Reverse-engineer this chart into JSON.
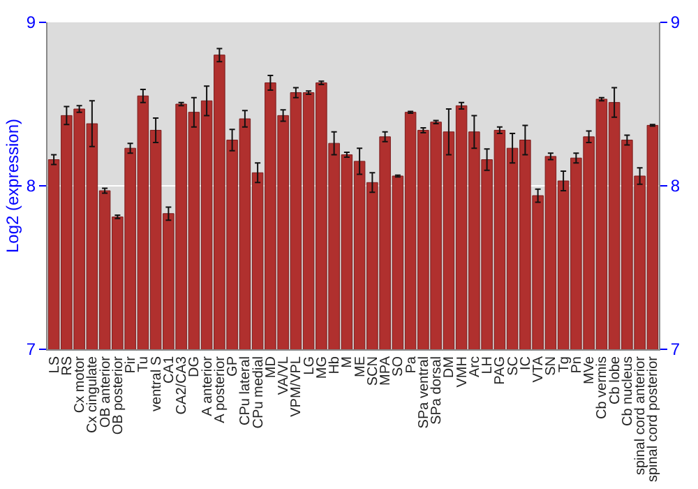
{
  "chart_data": {
    "type": "bar",
    "ylabel": "Log2 (expression)",
    "categories": [
      "LS",
      "RS",
      "Cx motor",
      "Cx cingulate",
      "OB anterior",
      "OB posterior",
      "Pir",
      "Tu",
      "ventral S",
      "CA1",
      "CA2/CA3",
      "DG",
      "A anterior",
      "A posterior",
      "GP",
      "CPu lateral",
      "CPu medial",
      "MD",
      "VA/VL",
      "VPM/VPL",
      "LG",
      "MG",
      "Hb",
      "M",
      "ME",
      "SCN",
      "MPA",
      "SO",
      "Pa",
      "SPa ventral",
      "SPa dorsal",
      "DM",
      "VMH",
      "Arc",
      "LH",
      "PAG",
      "SC",
      "IC",
      "VTA",
      "SN",
      "Tg",
      "Pn",
      "MVe",
      "Cb vermis",
      "Cb lobe",
      "Cb nucleus",
      "spinal cord anterior",
      "spinal cord posterior"
    ],
    "values": [
      8.16,
      8.43,
      8.47,
      8.38,
      7.97,
      7.81,
      8.23,
      8.55,
      8.34,
      7.83,
      8.5,
      8.45,
      8.52,
      8.8,
      8.28,
      8.41,
      8.08,
      8.63,
      8.43,
      8.57,
      8.57,
      8.63,
      8.26,
      8.19,
      8.15,
      8.02,
      8.3,
      8.06,
      8.45,
      8.34,
      8.39,
      8.33,
      8.49,
      8.33,
      8.16,
      8.34,
      8.23,
      8.28,
      7.94,
      8.18,
      8.03,
      8.17,
      8.3,
      8.53,
      8.51,
      8.28,
      8.06,
      8.37
    ],
    "errors": [
      0.03,
      0.055,
      0.02,
      0.14,
      0.015,
      0.01,
      0.03,
      0.04,
      0.075,
      0.04,
      0.01,
      0.09,
      0.09,
      0.04,
      0.065,
      0.05,
      0.06,
      0.045,
      0.035,
      0.03,
      0.01,
      0.01,
      0.07,
      0.015,
      0.08,
      0.06,
      0.03,
      0.005,
      0.005,
      0.015,
      0.01,
      0.14,
      0.02,
      0.1,
      0.065,
      0.02,
      0.09,
      0.09,
      0.04,
      0.02,
      0.06,
      0.03,
      0.035,
      0.01,
      0.09,
      0.03,
      0.05,
      0.005
    ],
    "color": "#b0302e",
    "ylim": [
      7,
      9
    ],
    "yticks": [
      7,
      8,
      9
    ],
    "y2lim": [
      7,
      9
    ],
    "y2ticks": [
      7,
      8,
      9
    ],
    "grid": "y"
  }
}
